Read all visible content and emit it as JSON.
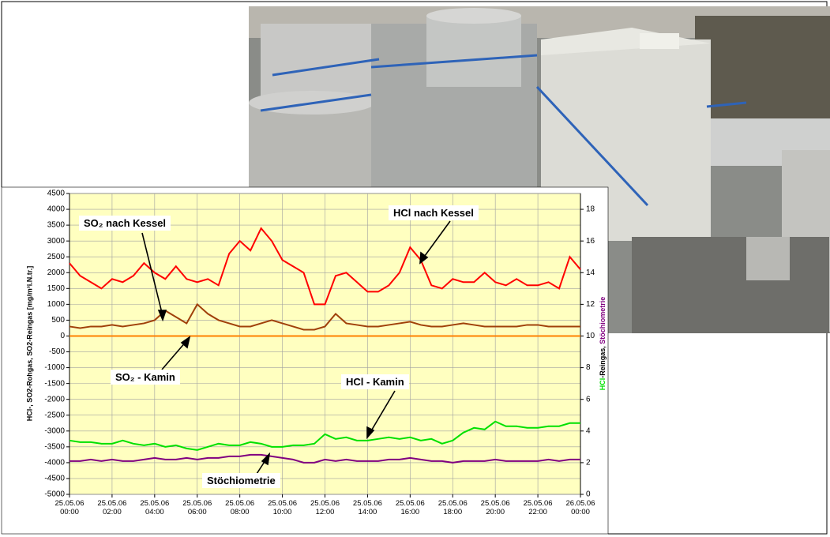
{
  "chart_data": {
    "type": "line",
    "xlim": [
      0,
      24
    ],
    "xticks": [
      {
        "value": 0,
        "label": "25.05.06 00:00"
      },
      {
        "value": 2,
        "label": "25.05.06 02:00"
      },
      {
        "value": 4,
        "label": "25.05.06 04:00"
      },
      {
        "value": 6,
        "label": "25.05.06 06:00"
      },
      {
        "value": 8,
        "label": "25.05.06 08:00"
      },
      {
        "value": 10,
        "label": "25.05.06 10:00"
      },
      {
        "value": 12,
        "label": "25.05.06 12:00"
      },
      {
        "value": 14,
        "label": "25.05.06 14:00"
      },
      {
        "value": 16,
        "label": "25.05.06 16:00"
      },
      {
        "value": 18,
        "label": "25.05.06 18:00"
      },
      {
        "value": 20,
        "label": "25.05.06 20:00"
      },
      {
        "value": 22,
        "label": "25.05.06 22:00"
      },
      {
        "value": 24,
        "label": "26.05.06 00:00"
      }
    ],
    "ylim": [
      -5000,
      4500
    ],
    "yticks": [
      -5000,
      -4500,
      -4000,
      -3500,
      -3000,
      -2500,
      -2000,
      -1500,
      -1000,
      -500,
      0,
      500,
      1000,
      1500,
      2000,
      2500,
      3000,
      3500,
      4000,
      4500
    ],
    "y2lim": [
      0,
      19
    ],
    "y2ticks": [
      0,
      2,
      4,
      6,
      8,
      10,
      12,
      14,
      16,
      18
    ],
    "ylabel": "HCl-, SO2-Rohgas, SO2-Reingas [mg/m³i.N.tr.]",
    "y2label": [
      "HCl",
      "-Reingas, ",
      "Stöchiometrie"
    ],
    "grid": true,
    "x": [
      0,
      0.5,
      1,
      1.5,
      2,
      2.5,
      3,
      3.5,
      4,
      4.5,
      5,
      5.5,
      6,
      6.5,
      7,
      7.5,
      8,
      8.5,
      9,
      9.5,
      10,
      10.5,
      11,
      11.5,
      12,
      12.5,
      13,
      13.5,
      14,
      14.5,
      15,
      15.5,
      16,
      16.5,
      17,
      17.5,
      18,
      18.5,
      19,
      19.5,
      20,
      20.5,
      21,
      21.5,
      22,
      22.5,
      23,
      23.5,
      24
    ],
    "series": [
      {
        "name": "HCl nach Kessel",
        "color": "#ff0000",
        "values": [
          2300,
          1900,
          1700,
          1500,
          1800,
          1700,
          1900,
          2300,
          2000,
          1800,
          2200,
          1800,
          1700,
          1800,
          1600,
          2600,
          3000,
          2700,
          3400,
          3000,
          2400,
          2200,
          2000,
          1000,
          1000,
          1900,
          2000,
          1700,
          1400,
          1400,
          1600,
          2000,
          2800,
          2400,
          1600,
          1500,
          1800,
          1700,
          1700,
          2000,
          1700,
          1600,
          1800,
          1600,
          1600,
          1700,
          1500,
          2500,
          2100
        ]
      },
      {
        "name": "SO₂ nach Kessel",
        "color": "#a0400a",
        "values": [
          300,
          250,
          300,
          300,
          350,
          300,
          350,
          400,
          500,
          800,
          600,
          400,
          1000,
          700,
          500,
          400,
          300,
          300,
          400,
          500,
          400,
          300,
          200,
          200,
          300,
          700,
          400,
          350,
          300,
          300,
          350,
          400,
          450,
          350,
          300,
          300,
          350,
          400,
          350,
          300,
          300,
          300,
          300,
          350,
          350,
          300,
          300,
          300,
          300
        ]
      },
      {
        "name": "SO₂ - Kamin",
        "color": "#ff8000",
        "values": [
          0,
          0,
          0,
          0,
          0,
          0,
          0,
          0,
          0,
          0,
          0,
          0,
          0,
          0,
          0,
          0,
          0,
          0,
          0,
          0,
          0,
          0,
          0,
          0,
          0,
          0,
          0,
          0,
          0,
          0,
          0,
          0,
          0,
          0,
          0,
          0,
          0,
          0,
          0,
          0,
          0,
          0,
          0,
          0,
          0,
          0,
          0,
          0,
          0
        ]
      },
      {
        "name": "HCl - Kamin",
        "color": "#00e000",
        "axis": "y2",
        "values": [
          3.4,
          3.3,
          3.3,
          3.2,
          3.2,
          3.4,
          3.2,
          3.1,
          3.2,
          3.0,
          3.1,
          2.9,
          2.8,
          3.0,
          3.2,
          3.1,
          3.1,
          3.3,
          3.2,
          3.0,
          3.0,
          3.1,
          3.1,
          3.2,
          3.8,
          3.5,
          3.6,
          3.4,
          3.4,
          3.5,
          3.6,
          3.5,
          3.6,
          3.4,
          3.5,
          3.2,
          3.4,
          3.9,
          4.2,
          4.1,
          4.6,
          4.3,
          4.3,
          4.2,
          4.2,
          4.3,
          4.3,
          4.5,
          4.5
        ]
      },
      {
        "name": "Stöchiometrie",
        "color": "#800080",
        "axis": "y2",
        "values": [
          2.1,
          2.1,
          2.2,
          2.1,
          2.2,
          2.1,
          2.1,
          2.2,
          2.3,
          2.2,
          2.2,
          2.3,
          2.2,
          2.3,
          2.3,
          2.4,
          2.4,
          2.5,
          2.5,
          2.4,
          2.3,
          2.2,
          2.0,
          2.0,
          2.2,
          2.1,
          2.2,
          2.1,
          2.1,
          2.1,
          2.2,
          2.2,
          2.3,
          2.2,
          2.1,
          2.1,
          2.0,
          2.1,
          2.1,
          2.1,
          2.2,
          2.1,
          2.1,
          2.1,
          2.1,
          2.2,
          2.1,
          2.2,
          2.2
        ]
      }
    ]
  }
}
